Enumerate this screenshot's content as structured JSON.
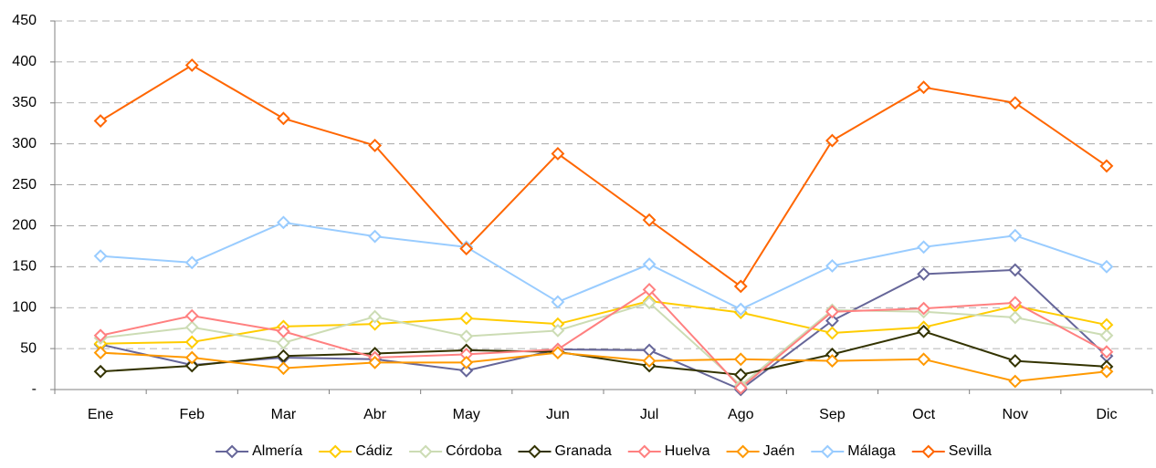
{
  "chart_data": {
    "type": "line",
    "categories": [
      "Ene",
      "Feb",
      "Mar",
      "Abr",
      "May",
      "Jun",
      "Jul",
      "Ago",
      "Sep",
      "Oct",
      "Nov",
      "Dic"
    ],
    "series": [
      {
        "name": "Almería",
        "color": "#666699",
        "values": [
          55,
          30,
          39,
          37,
          23,
          49,
          48,
          0,
          84,
          141,
          146,
          41
        ]
      },
      {
        "name": "Cádiz",
        "color": "#ffcc00",
        "values": [
          56,
          58,
          77,
          80,
          87,
          80,
          108,
          94,
          69,
          76,
          102,
          79
        ]
      },
      {
        "name": "Córdoba",
        "color": "#ccdcb4",
        "values": [
          63,
          76,
          57,
          89,
          65,
          72,
          106,
          5,
          97,
          95,
          88,
          66
        ]
      },
      {
        "name": "Granada",
        "color": "#333300",
        "values": [
          22,
          29,
          41,
          44,
          48,
          46,
          29,
          18,
          43,
          71,
          35,
          28
        ]
      },
      {
        "name": "Huelva",
        "color": "#ff8080",
        "values": [
          66,
          90,
          71,
          39,
          43,
          49,
          122,
          2,
          95,
          99,
          106,
          46
        ]
      },
      {
        "name": "Jaén",
        "color": "#ff9900",
        "values": [
          45,
          39,
          26,
          33,
          33,
          45,
          35,
          37,
          35,
          37,
          10,
          22
        ]
      },
      {
        "name": "Málaga",
        "color": "#99ccff",
        "values": [
          163,
          155,
          204,
          187,
          174,
          107,
          153,
          98,
          151,
          174,
          188,
          150
        ]
      },
      {
        "name": "Sevilla",
        "color": "#ff6600",
        "values": [
          328,
          396,
          331,
          298,
          172,
          288,
          207,
          126,
          304,
          369,
          350,
          273
        ]
      }
    ],
    "ylim": [
      0,
      450
    ],
    "yticks": [
      {
        "value": 0,
        "label": "-"
      },
      50,
      100,
      150,
      200,
      250,
      300,
      350,
      400,
      450
    ],
    "grid": true,
    "legend": "bottom"
  }
}
